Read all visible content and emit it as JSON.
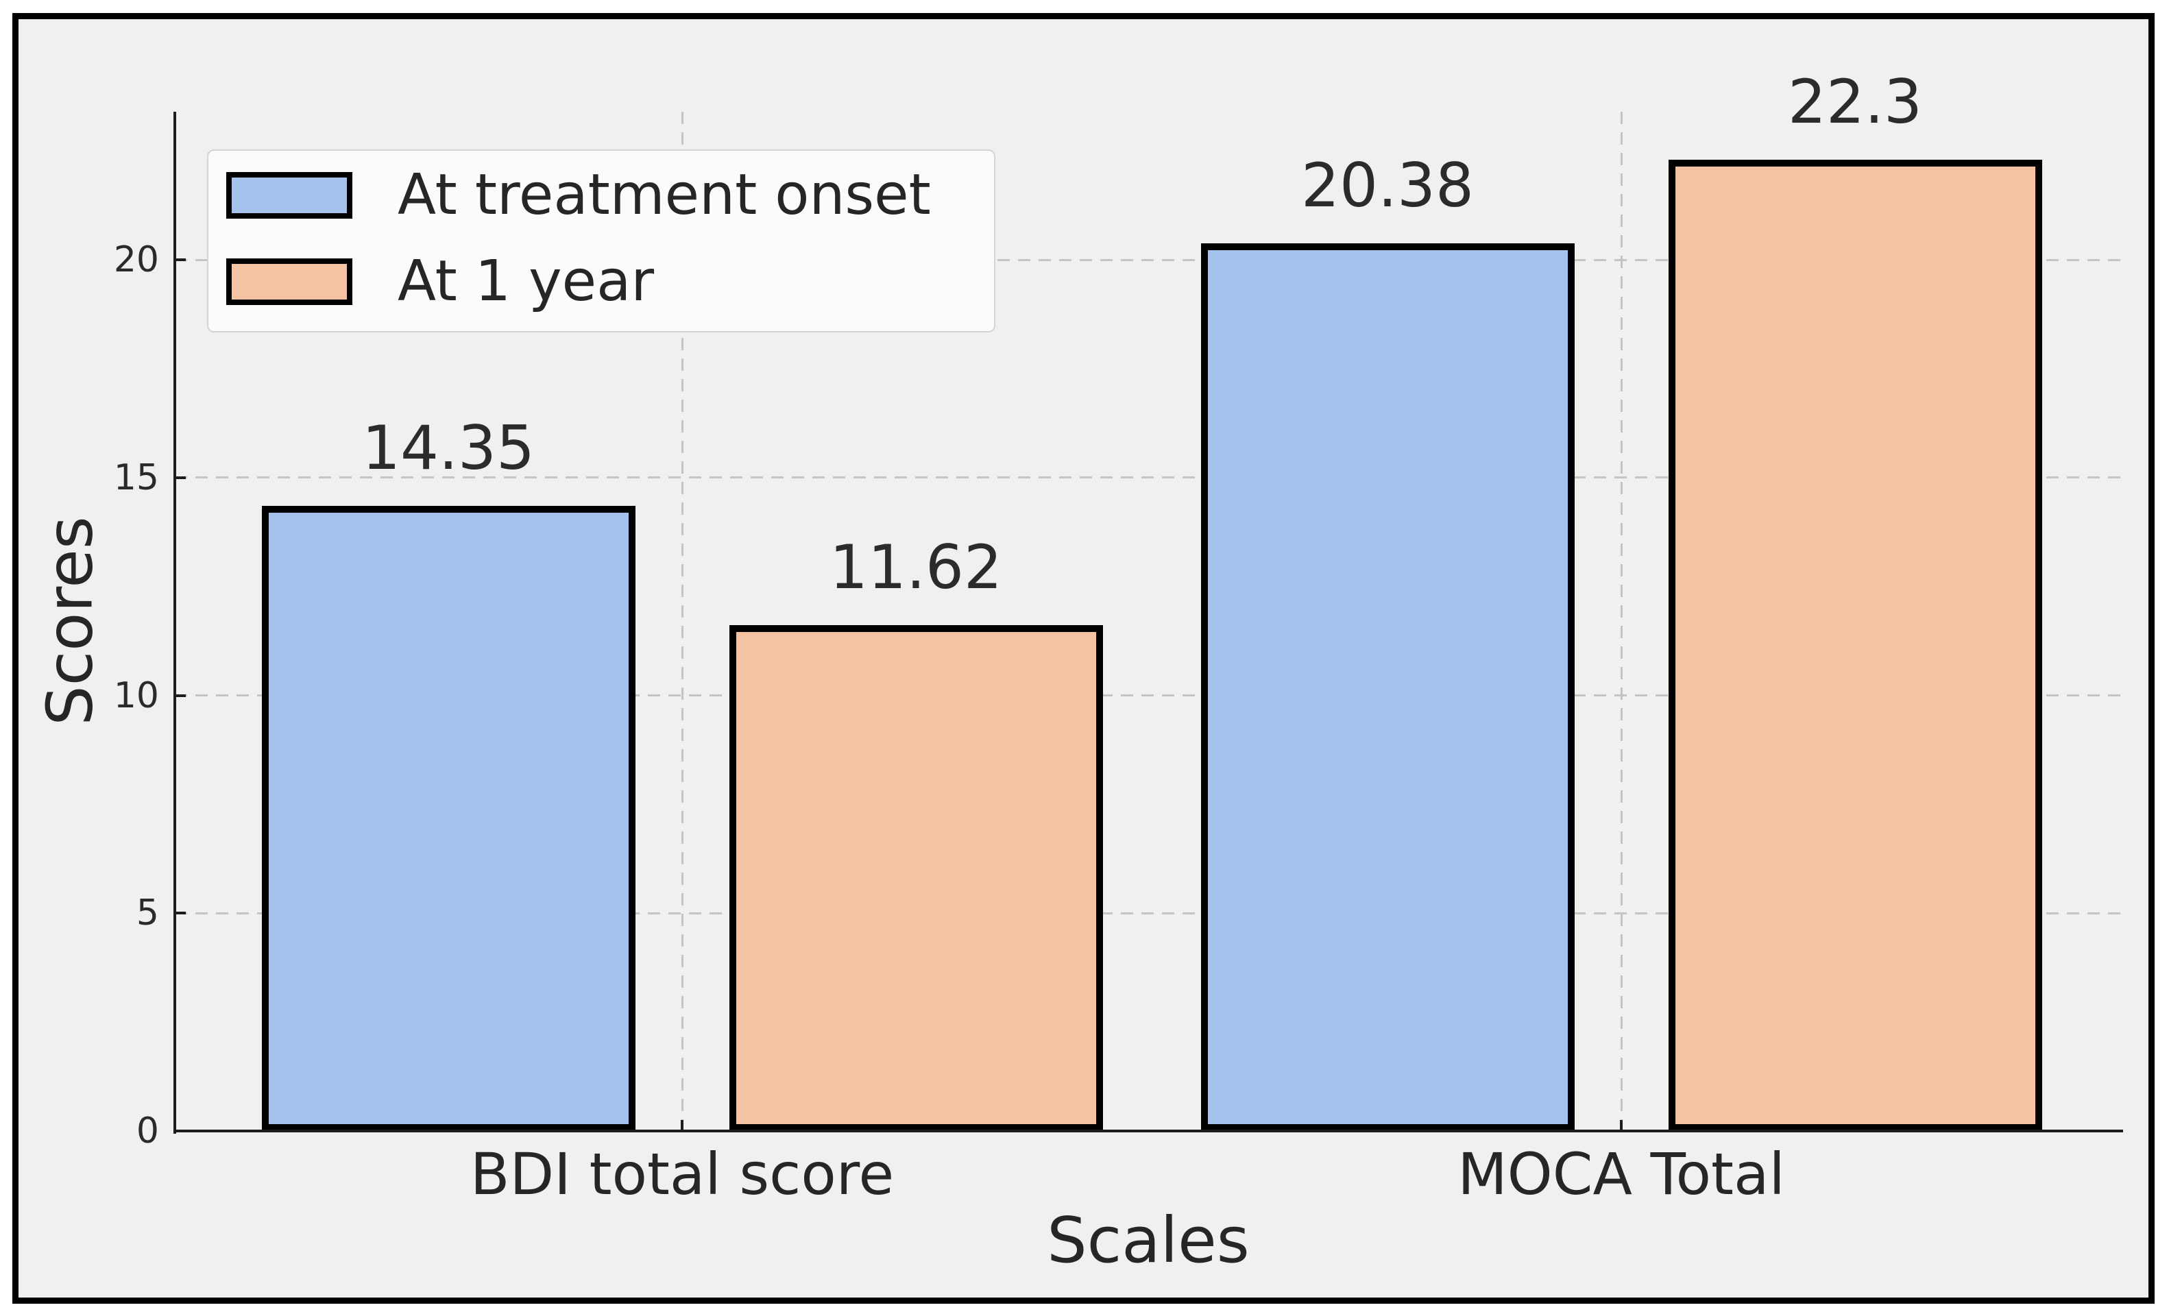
{
  "figure": {
    "background_color": "#f0f0ee",
    "frame_color": "#000000"
  },
  "chart_data": {
    "type": "bar",
    "title": "",
    "xlabel": "Scales",
    "ylabel": "Scores",
    "categories": [
      "BDI total score",
      "MOCA Total"
    ],
    "series": [
      {
        "name": "At treatment onset",
        "color": "#a4c2ec",
        "values": [
          14.35,
          20.38
        ],
        "value_labels": [
          "14.35",
          "20.38"
        ]
      },
      {
        "name": "At 1 year",
        "color": "#f4c3a1",
        "values": [
          11.62,
          22.3
        ],
        "value_labels": [
          "11.62",
          "22.3"
        ]
      }
    ],
    "yticks": [
      0,
      5,
      10,
      15,
      20
    ],
    "ylim": [
      0,
      23.4
    ],
    "bar_edge_color": "#000000",
    "grid": {
      "style": "dashed",
      "color": "#c4c4c4",
      "horizontal": true,
      "vertical": true
    },
    "legend": {
      "position": "upper left",
      "entries": [
        "At treatment onset",
        "At 1 year"
      ]
    }
  }
}
